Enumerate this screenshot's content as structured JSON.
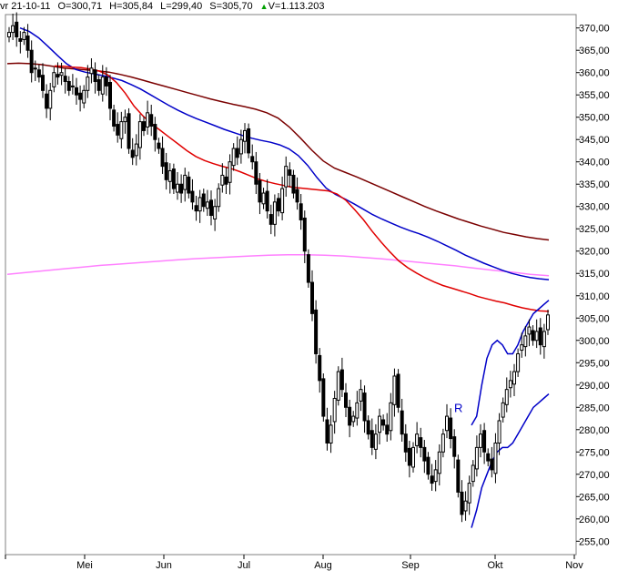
{
  "header": {
    "date": "vr 21-10-11",
    "open": "O=300,71",
    "high": "H=305,84",
    "low": "L=299,40",
    "close": "S=305,70",
    "volume": "V=1.113.203"
  },
  "chart_data": {
    "type": "candlestick",
    "x_tick_labels": [
      "Mei",
      "Jun",
      "Jul",
      "Aug",
      "Sep",
      "Okt",
      "Nov"
    ],
    "y_tick_labels": [
      "255,00",
      "260,00",
      "265,00",
      "270,00",
      "275,00",
      "280,00",
      "285,00",
      "290,00",
      "295,00",
      "300,00",
      "305,00",
      "310,00",
      "315,00",
      "320,00",
      "325,00",
      "330,00",
      "335,00",
      "340,00",
      "345,00",
      "350,00",
      "355,00",
      "360,00",
      "365,00",
      "370,00"
    ],
    "ylim": [
      252,
      373
    ],
    "annotation": "R",
    "colors": {
      "candle": "#000000",
      "ma_fast": "#e00000",
      "ma_mid": "#0000c8",
      "ma_slow": "#7a0000",
      "ma_long": "#ff80ff",
      "bands": "#0000c8",
      "annotation": "#0000c8"
    },
    "closes": [
      369,
      370.5,
      368,
      367,
      369,
      365,
      360,
      361,
      359,
      356,
      352,
      356,
      360,
      359,
      360,
      358,
      356,
      357,
      355,
      354,
      356,
      359,
      361,
      358,
      356,
      359,
      357,
      352,
      348,
      346,
      349,
      350,
      343,
      341,
      344,
      349,
      347,
      351,
      348,
      345,
      343,
      339,
      336,
      338,
      334,
      335,
      333,
      337,
      333,
      331,
      329,
      332,
      330,
      331,
      328,
      330,
      334,
      337,
      335,
      340,
      343,
      341,
      345,
      347,
      342,
      340,
      335,
      331,
      333,
      329,
      326,
      331,
      329,
      334,
      339,
      337,
      333,
      331,
      327,
      320,
      313,
      306,
      297,
      291,
      283,
      277,
      281,
      287,
      293,
      289,
      285,
      281,
      283,
      286,
      289,
      282,
      279,
      276,
      279,
      283,
      281,
      279,
      286,
      292,
      285,
      279,
      275,
      272,
      276,
      279,
      276,
      273,
      270,
      268,
      271,
      275,
      279,
      283,
      278,
      274,
      266,
      261,
      264,
      268,
      272,
      276,
      279,
      275,
      273,
      271,
      277,
      282,
      286,
      289,
      291,
      293,
      297,
      299,
      301,
      303,
      300,
      302,
      299,
      302,
      305.7
    ],
    "ma_fast": [
      361.5,
      361.4,
      361.2,
      361.1,
      360.8,
      360.4,
      359.5,
      357.8,
      355.4,
      352.5,
      350.3,
      348.5,
      347,
      345.5,
      344,
      342.5,
      341.2,
      340.3,
      339.6,
      339,
      338.5,
      337.8,
      337,
      336.2,
      335.6,
      335.1,
      334.7,
      334.3,
      334.1,
      333.9,
      333.7,
      333.5,
      332.8,
      331.4,
      329.3,
      327,
      324.4,
      322,
      319.8,
      317.8,
      316.3,
      315.1,
      314,
      313.1,
      312.3,
      311.7,
      311.1,
      310.5,
      309.8,
      309.3,
      308.8,
      308.4,
      307.8,
      307.3,
      306.9,
      306.6,
      306.5
    ],
    "ma_mid": [
      370,
      369.2,
      367.8,
      365.9,
      363.9,
      362,
      360.7,
      360.1,
      359.7,
      359.3,
      358.8,
      358.2,
      357.3,
      356.3,
      355.1,
      353.9,
      352.7,
      351.6,
      350.6,
      349.7,
      348.9,
      348.1,
      347.3,
      346.6,
      345.9,
      345.3,
      344.8,
      344.4,
      343.8,
      342.9,
      341.4,
      339.2,
      336.5,
      334.1,
      332.7,
      331.7,
      330.6,
      329.4,
      328.2,
      327.2,
      326.3,
      325.4,
      324.6,
      323.9,
      323.1,
      322.2,
      321.2,
      320.2,
      319.1,
      318.2,
      317.3,
      316.5,
      315.7,
      315,
      314.5,
      314.1,
      313.8,
      313.6
    ],
    "ma_slow": [
      362,
      362.1,
      362,
      361.8,
      361.4,
      361,
      360.8,
      360.6,
      360.4,
      360.1,
      359.6,
      359,
      358.3,
      357.6,
      356.9,
      356.2,
      355.5,
      354.8,
      354.1,
      353.5,
      352.9,
      352.4,
      351.8,
      351,
      349.8,
      347.8,
      345.3,
      342.6,
      340.2,
      338.6,
      337.6,
      336.6,
      335.5,
      334.4,
      333.3,
      332.2,
      331.1,
      330,
      329,
      328.1,
      327.2,
      326.4,
      325.6,
      324.9,
      324.2,
      323.7,
      323.2,
      322.8,
      322.5
    ],
    "ma_long": [
      314.8,
      315.2,
      315.6,
      316,
      316.4,
      316.8,
      317.1,
      317.4,
      317.7,
      318,
      318.3,
      318.5,
      318.7,
      318.9,
      319.1,
      319.2,
      319.2,
      319.1,
      318.9,
      318.6,
      318.3,
      317.9,
      317.5,
      317.1,
      316.7,
      316.2,
      315.7,
      315.3,
      314.8,
      314.5
    ],
    "band_upper": [
      281,
      283,
      290,
      296,
      299,
      300,
      299,
      297,
      297,
      299,
      302,
      304,
      306,
      307,
      308,
      309
    ],
    "band_lower": [
      258,
      262,
      267,
      270,
      273,
      275,
      276,
      276,
      277,
      279,
      281,
      283,
      285,
      286,
      287,
      288
    ]
  }
}
